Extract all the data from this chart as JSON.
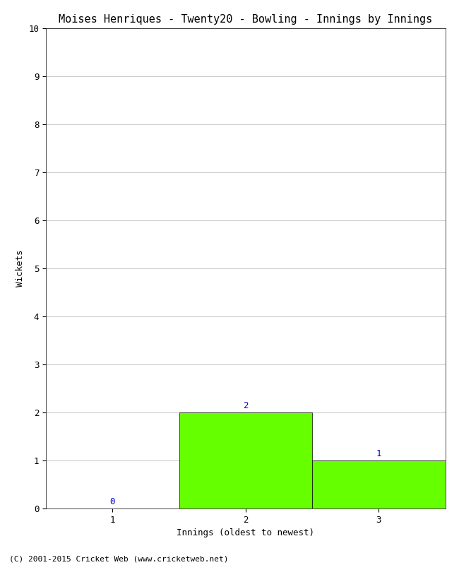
{
  "title": "Moises Henriques - Twenty20 - Bowling - Innings by Innings",
  "xlabel": "Innings (oldest to newest)",
  "ylabel": "Wickets",
  "categories": [
    "1",
    "2",
    "3"
  ],
  "values": [
    0,
    2,
    1
  ],
  "bar_color": "#66ff00",
  "bar_edge_color": "#000000",
  "ylim": [
    0,
    10
  ],
  "yticks": [
    0,
    1,
    2,
    3,
    4,
    5,
    6,
    7,
    8,
    9,
    10
  ],
  "annotation_color": "#0000cc",
  "annotation_fontsize": 9,
  "title_fontsize": 11,
  "axis_label_fontsize": 9,
  "tick_fontsize": 9,
  "footer": "(C) 2001-2015 Cricket Web (www.cricketweb.net)",
  "footer_fontsize": 8,
  "background_color": "#ffffff",
  "grid_color": "#cccccc"
}
